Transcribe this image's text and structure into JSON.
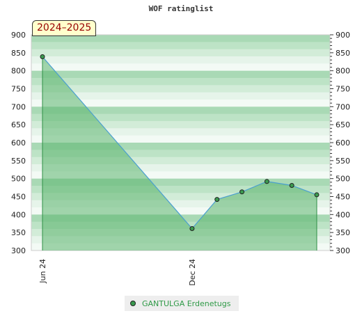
{
  "chart_data": {
    "type": "area",
    "title": "WOF ratinglist",
    "period_label": "2024–2025",
    "ylim": [
      300,
      900
    ],
    "y_ticks": [
      300,
      350,
      400,
      450,
      500,
      550,
      600,
      650,
      700,
      750,
      800,
      850,
      900
    ],
    "x_ticks": [
      {
        "label": "Jun 24",
        "index": 0
      },
      {
        "label": "Dec 24",
        "index": 6
      }
    ],
    "series": [
      {
        "name": "GANTULGA Erdenetugs",
        "points": [
          {
            "index": 0,
            "value": 839
          },
          {
            "index": 6,
            "value": 361
          },
          {
            "index": 7,
            "value": 442
          },
          {
            "index": 8,
            "value": 463
          },
          {
            "index": 9,
            "value": 492
          },
          {
            "index": 10,
            "value": 481
          },
          {
            "index": 11,
            "value": 455
          }
        ]
      }
    ],
    "x_domain": [
      0,
      11
    ],
    "legend_position": "bottom",
    "grid": true,
    "colors": {
      "line": "#4a9fd0",
      "fill": "#5bb56e",
      "marker": "#3b9a4f",
      "band_dark": "#b0dcbd",
      "band_light": "#e8f5ec"
    }
  }
}
